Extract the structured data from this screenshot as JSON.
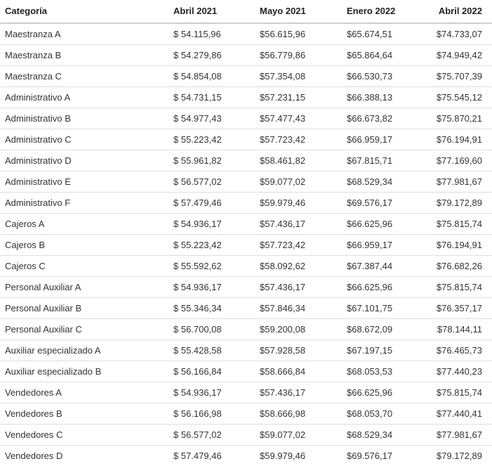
{
  "table": {
    "headers": [
      "Categoría",
      "Abril 2021",
      "Mayo 2021",
      "Enero 2022",
      "Abril 2022"
    ],
    "rows": [
      [
        "Maestranza A",
        "$ 54.115,96",
        "$56.615,96",
        "$65.674,51",
        "$74.733,07"
      ],
      [
        "Maestranza B",
        "$ 54.279,86",
        "$56.779,86",
        "$65.864,64",
        "$74.949,42"
      ],
      [
        "Maestranza C",
        "$ 54.854,08",
        "$57.354,08",
        "$66.530,73",
        "$75.707,39"
      ],
      [
        "Administrativo A",
        "$ 54.731,15",
        "$57.231,15",
        "$66.388,13",
        "$75.545,12"
      ],
      [
        "Administrativo B",
        "$ 54.977,43",
        "$57.477,43",
        "$66.673,82",
        "$75.870,21"
      ],
      [
        "Administrativo C",
        "$ 55.223,42",
        "$57.723,42",
        "$66.959,17",
        "$76.194,91"
      ],
      [
        "Administrativo D",
        "$ 55.961,82",
        "$58.461,82",
        "$67.815,71",
        "$77.169,60"
      ],
      [
        "Administrativo E",
        "$ 56.577,02",
        "$59.077,02",
        "$68.529,34",
        "$77.981,67"
      ],
      [
        "Administrativo F",
        "$ 57.479,46",
        "$59.979,46",
        "$69.576,17",
        "$79.172,89"
      ],
      [
        "Cajeros A",
        "$ 54.936,17",
        "$57.436,17",
        "$66.625,96",
        "$75.815,74"
      ],
      [
        "Cajeros B",
        "$ 55.223,42",
        "$57.723,42",
        "$66.959,17",
        "$76.194,91"
      ],
      [
        "Cajeros C",
        "$ 55.592,62",
        "$58.092,62",
        "$67.387,44",
        "$76.682,26"
      ],
      [
        "Personal Auxiliar A",
        "$ 54.936,17",
        "$57.436,17",
        "$66.625,96",
        "$75.815,74"
      ],
      [
        "Personal Auxiliar B",
        "$ 55.346,34",
        "$57.846,34",
        "$67.101,75",
        "$76.357,17"
      ],
      [
        "Personal Auxiliar C",
        "$ 56.700,08",
        "$59.200,08",
        "$68.672,09",
        "$78.144,11"
      ],
      [
        "Auxiliar especializado A",
        "$ 55.428,58",
        "$57.928,58",
        "$67.197,15",
        "$76.465,73"
      ],
      [
        "Auxiliar especializado B",
        "$ 56.166,84",
        "$58.666,84",
        "$68.053,53",
        "$77.440,23"
      ],
      [
        "Vendedores A",
        "$ 54.936,17",
        "$57.436,17",
        "$66.625,96",
        "$75.815,74"
      ],
      [
        "Vendedores B",
        "$ 56.166,98",
        "$58.666,98",
        "$68.053,70",
        "$77.440,41"
      ],
      [
        "Vendedores C",
        "$ 56.577,02",
        "$59.077,02",
        "$68.529,34",
        "$77.981,67"
      ],
      [
        "Vendedores D",
        "$ 57.479,46",
        "$59.979,46",
        "$69.576,17",
        "$79.172,89"
      ]
    ]
  }
}
